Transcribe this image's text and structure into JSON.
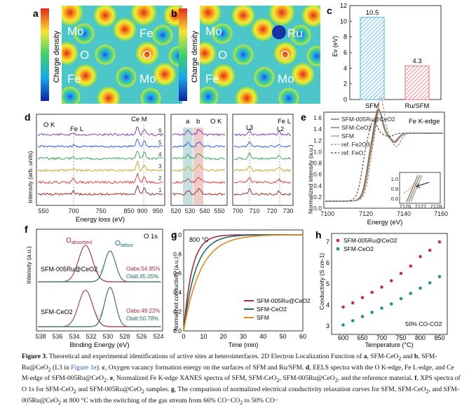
{
  "panels": {
    "a": {
      "letter": "a",
      "colorbar_label": "Charge density",
      "labels": [
        "Mo",
        "Fe",
        "O",
        "O",
        "Fe",
        "Mo"
      ]
    },
    "b": {
      "letter": "b",
      "colorbar_label": "Charge density",
      "labels": [
        "Mo",
        "Ru",
        "O",
        "O",
        "Fe",
        "Mo"
      ]
    },
    "c": {
      "letter": "c"
    },
    "d": {
      "letter": "d",
      "ylabel": "Intensity (arb. units)",
      "xlabel": "Energy loss (eV)",
      "edge_labels": {
        "ok": "O K",
        "fel": "Fe L",
        "cem": "Ce M",
        "ok2": "O K",
        "fel2": "Fe L",
        "l3": "L3",
        "l2": "L2",
        "a": "a",
        "b": "b"
      },
      "trace_numbers": [
        "6",
        "5",
        "4",
        "3",
        "2",
        "1"
      ],
      "ticks_left": [
        "550",
        "700",
        "750",
        "850",
        "900",
        "950"
      ],
      "ticks_mid": [
        "520",
        "530",
        "540",
        "550"
      ],
      "ticks_right": [
        "700",
        "710",
        "720",
        "730"
      ]
    },
    "e": {
      "letter": "e",
      "title": "Fe K-edge",
      "ylabel": "Normalized intensity (a.u.)",
      "xlabel": "Energy (eV)",
      "legend": [
        "SFM-005Ru@CeO2",
        "SFM-CeO2",
        "SFM",
        "ref. Fe2O3",
        "ref. FeO"
      ],
      "yticks": [
        "0.0",
        "0.2",
        "0.4",
        "0.6",
        "0.8",
        "1.0",
        "1.2",
        "1.4",
        "1.6"
      ],
      "xticks": [
        "7100",
        "7120",
        "7140",
        "7160"
      ],
      "inset_xticks": [
        "7126",
        "7127",
        "7128"
      ],
      "inset_yticks": [
        "1.0",
        "0.8",
        "0.6"
      ]
    },
    "f": {
      "letter": "f",
      "title": "O 1s",
      "ylabel": "Intensity (a.u.)",
      "xlabel": "Binding Energy (eV)",
      "o_abs": "O",
      "o_abs_sub": "absorbed",
      "o_lat": "O",
      "o_lat_sub": "lattice",
      "sample1": "SFM-005Ru@CeO2",
      "sample2": "SFM-CeO2",
      "s1_abs": "Oabs:54.95%",
      "s1_lat": "Olatt:45.05%",
      "s2_abs": "Oabs:49.22%",
      "s2_lat": "Olatt:50.78%",
      "xticks": [
        "538",
        "536",
        "534",
        "532",
        "530",
        "528",
        "526",
        "524"
      ]
    },
    "g": {
      "letter": "g",
      "annotation": "800 °C",
      "ylabel": "Normalized conductivity (a.u.)",
      "xlabel": "Time (min)",
      "legend": [
        "SFM-005Ru@CeO2",
        "SFM-CeO2",
        "SFM"
      ],
      "xticks": [
        "0",
        "10",
        "20",
        "30",
        "40",
        "50",
        "60"
      ],
      "yticks": [
        "0.0",
        "0.2",
        "0.4",
        "0.6",
        "0.8",
        "1.0"
      ]
    },
    "h": {
      "letter": "h",
      "annotation": "50% CO-CO2",
      "ylabel": "Conductivity (S cm-1)",
      "xlabel": "Temperature (°C)",
      "legend": [
        "SFM-005Ru@CeO2",
        "SFM-CeO2"
      ],
      "xticks": [
        "600",
        "650",
        "700",
        "750",
        "800",
        "850"
      ],
      "yticks": [
        "3",
        "4",
        "5",
        "6",
        "7"
      ]
    }
  },
  "chart_data": [
    {
      "id": "c",
      "type": "bar",
      "categories": [
        "SFM",
        "Ru/SFM"
      ],
      "values": [
        10.5,
        4.3
      ],
      "data_labels": [
        "10.5",
        "4.3"
      ],
      "ylabel": "Ev (eV)",
      "ylim": [
        0,
        12
      ],
      "yticks": [
        "0",
        "2",
        "4",
        "6",
        "8",
        "10",
        "12"
      ],
      "colors": [
        "#4bb3e6",
        "#ee6d78"
      ]
    },
    {
      "id": "g",
      "type": "line",
      "title": "",
      "xlabel": "Time (min)",
      "ylabel": "Normalized conductivity (a.u.)",
      "xlim": [
        0,
        60
      ],
      "ylim": [
        0,
        1.05
      ],
      "series": [
        {
          "name": "SFM-005Ru@CeO2",
          "color": "#a32a3c",
          "tau": 4.2
        },
        {
          "name": "SFM-CeO2",
          "color": "#1f6b6b",
          "tau": 6.0
        },
        {
          "name": "SFM",
          "color": "#e08a23",
          "tau": 8.5
        }
      ]
    },
    {
      "id": "h",
      "type": "scatter",
      "xlabel": "Temperature (°C)",
      "ylabel": "Conductivity (S cm-1)",
      "xlim": [
        570,
        870
      ],
      "ylim": [
        2.6,
        7.4
      ],
      "x": [
        600,
        625,
        650,
        675,
        700,
        725,
        750,
        775,
        800,
        825,
        850
      ],
      "series": [
        {
          "name": "SFM-005Ru@CeO2",
          "color": "#c0363f",
          "values": [
            3.9,
            4.1,
            4.35,
            4.6,
            4.85,
            5.15,
            5.5,
            5.85,
            6.3,
            6.6,
            7.0
          ]
        },
        {
          "name": "SFM-CeO2",
          "color": "#2a8f94",
          "values": [
            3.05,
            3.25,
            3.45,
            3.65,
            3.85,
            4.05,
            4.3,
            4.55,
            4.8,
            5.05,
            5.35
          ]
        }
      ]
    }
  ],
  "caption": {
    "label": "Figure 3.",
    "text1": " Theoretical and experimental identifications of active sites at heterointerfaces. 2D Electron Localization Function of ",
    "a": "a",
    "text2": ", SFM-CeO",
    "text3": " and ",
    "b": "b",
    "text4": ", SFM-Ru@CeO",
    "text5": " (L3 in ",
    "ref": "Figure 1e",
    "text6": "). ",
    "c": "c",
    "text7": ", Oxygen vacancy formation energy on the surfaces of SFM and Ru/SFM. ",
    "d": "d",
    "text8": ", EELS spectra with the O K-edge, Fe L-edge, and Ce M-edge of SFM-005Ru@CeO",
    "text9": ". ",
    "e": "e",
    "text10": ", Normalized Fe K-edge XANES spectra of SFM, SFM-CeO",
    "text11": ", SFM-005Ru@CeO",
    "text12": ", and the reference material. ",
    "f": "f",
    "text13": ", XPS spectra of O 1s for SFM-CeO",
    "text14": " and SFM-005Ru@CeO",
    "text15": " samples. ",
    "g": "g",
    "text16": ", The comparison of normalized electrical conductivity relaxation curves for SFM, SFM-CeO",
    "text17": ", and SFM-005Ru@CeO",
    "text18": " at 800 °C with the switching of the gas stream from 66% CO−CO",
    "text19": " to 50% CO−"
  }
}
